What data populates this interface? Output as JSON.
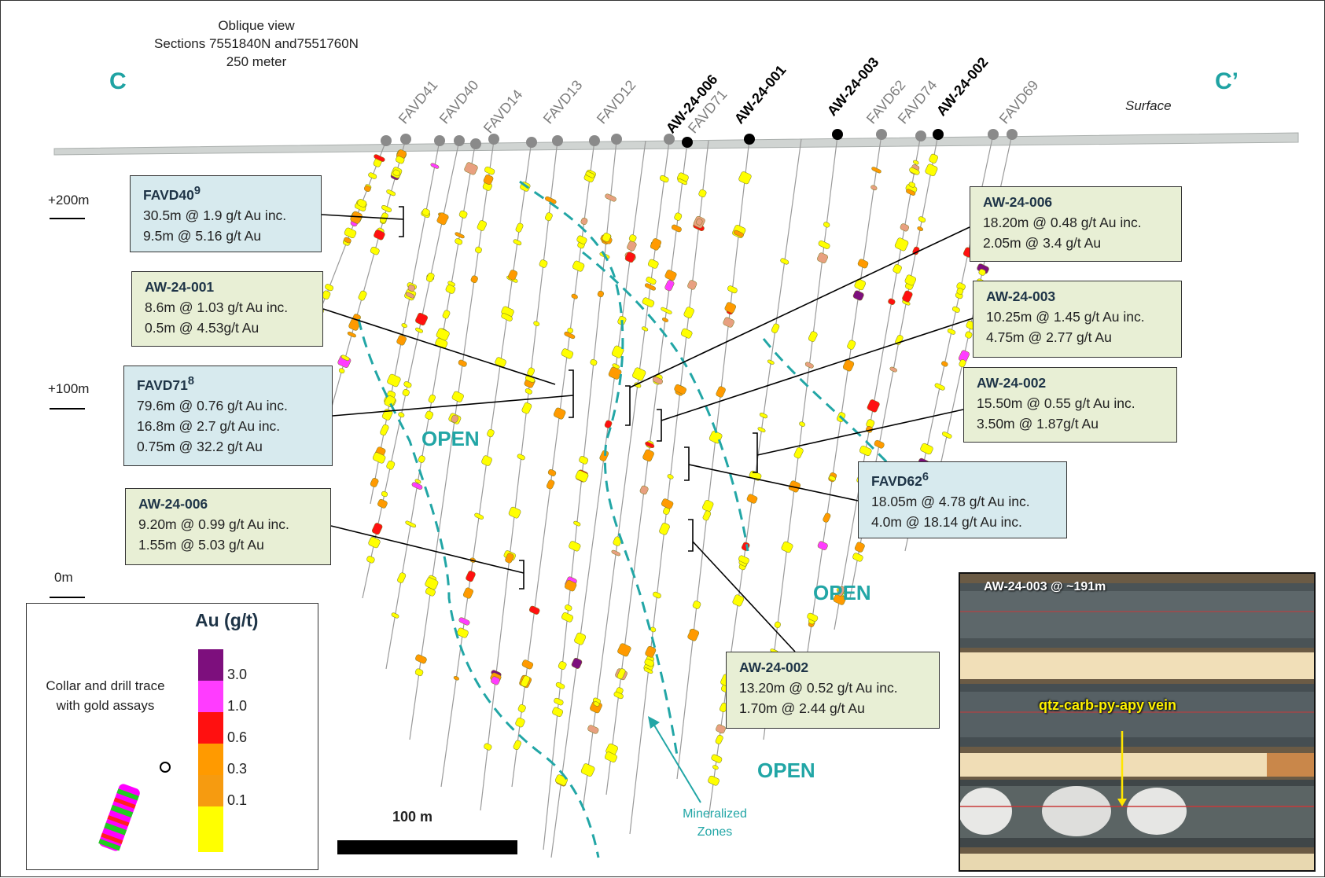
{
  "header": {
    "line1": "Oblique view",
    "line2": "Sections 7551840N and7551760N",
    "line3": "250 meter"
  },
  "section": {
    "left": "C",
    "right": "C’",
    "surface": "Surface"
  },
  "elevations": [
    "+200m",
    "+100m",
    "0m"
  ],
  "collars": [
    {
      "label": "FAVD41",
      "bold": false
    },
    {
      "label": "FAVD40",
      "bold": false
    },
    {
      "label": "FAVD14",
      "bold": false
    },
    {
      "label": "FAVD13",
      "bold": false
    },
    {
      "label": "FAVD12",
      "bold": false
    },
    {
      "label": "AW-24-006",
      "bold": true
    },
    {
      "label": "FAVD71",
      "bold": false
    },
    {
      "label": "AW-24-001",
      "bold": true
    },
    {
      "label": "AW-24-003",
      "bold": true
    },
    {
      "label": "FAVD62",
      "bold": false
    },
    {
      "label": "FAVD74",
      "bold": false
    },
    {
      "label": "AW-24-002",
      "bold": true
    },
    {
      "label": "FAVD69",
      "bold": false
    }
  ],
  "intercepts": [
    {
      "title": "FAVD40",
      "sup": "9",
      "lines": [
        "30.5m @ 1.9 g/t Au inc.",
        "9.5m @ 5.16 g/t Au"
      ]
    },
    {
      "title": "AW-24-001",
      "sup": "",
      "lines": [
        "8.6m @ 1.03 g/t Au inc.",
        "0.5m @ 4.53g/t Au"
      ]
    },
    {
      "title": "FAVD71",
      "sup": "8",
      "lines": [
        "79.6m @ 0.76 g/t Au inc.",
        "16.8m @ 2.7 g/t Au inc.",
        "0.75m @ 32.2 g/t Au"
      ]
    },
    {
      "title": "AW-24-006",
      "sup": "",
      "lines": [
        "9.20m @ 0.99 g/t Au inc.",
        "1.55m @ 5.03 g/t Au"
      ]
    },
    {
      "title": "AW-24-006",
      "sup": "",
      "lines": [
        "18.20m @ 0.48 g/t Au inc.",
        "2.05m @ 3.4 g/t Au"
      ]
    },
    {
      "title": "AW-24-003",
      "sup": "",
      "lines": [
        "10.25m @ 1.45 g/t Au inc.",
        "4.75m @ 2.77 g/t Au"
      ]
    },
    {
      "title": "AW-24-002",
      "sup": "",
      "lines": [
        "15.50m @ 0.55 g/t Au inc.",
        "3.50m @ 1.87g/t Au"
      ]
    },
    {
      "title": "FAVD62",
      "sup": "6",
      "lines": [
        "18.05m @ 4.78 g/t Au inc.",
        "4.0m @ 18.14 g/t Au inc."
      ]
    },
    {
      "title": "AW-24-002",
      "sup": "",
      "lines": [
        "13.20m @ 0.52 g/t Au inc.",
        "1.70m @ 2.44 g/t Au"
      ]
    }
  ],
  "open_label": "OPEN",
  "mineralized": [
    "Mineralized",
    "Zones"
  ],
  "legend": {
    "title": "Au (g/t)",
    "caption": [
      "Collar and drill trace",
      "with gold assays"
    ],
    "values": [
      "3.0",
      "1.0",
      "0.6",
      "0.3",
      "0.1"
    ],
    "colors": [
      "#7d0f7d",
      "#ff3cff",
      "#ff1010",
      "#ff9a00",
      "#ffff00"
    ]
  },
  "scale_label": "100 m",
  "photo": {
    "label": "AW-24-003 @ ~191m",
    "vein": "qtz-carb-py-apy vein"
  },
  "colors": {
    "teal": "#22a6a6",
    "trace": "#9a9a9a",
    "collar_gray": "#8a8a8a",
    "collar_black": "#000000"
  }
}
